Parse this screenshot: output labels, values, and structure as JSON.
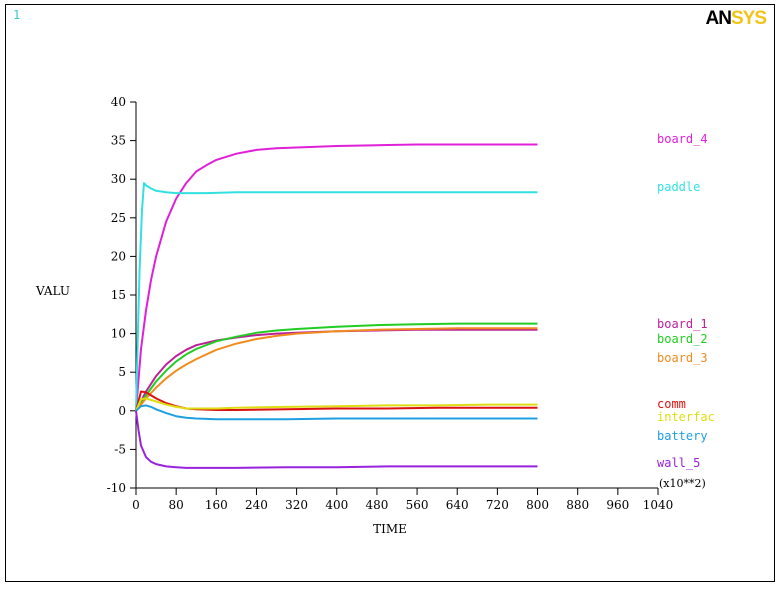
{
  "window": {
    "corner_number": "1",
    "corner_color": "#33cccc"
  },
  "logo": {
    "part1": "AN",
    "part2": "SYS",
    "color1": "#000000",
    "color2": "#f2c418"
  },
  "chart_data": {
    "type": "line",
    "title": "",
    "xlabel": "TIME",
    "ylabel": "VALU",
    "x_multiplier_label": "(x10**2)",
    "xlim": [
      0,
      1040
    ],
    "ylim": [
      -10,
      40
    ],
    "xticks": [
      0,
      80,
      160,
      240,
      320,
      400,
      480,
      560,
      640,
      720,
      800,
      880,
      960,
      1040
    ],
    "yticks": [
      -10,
      -5,
      0,
      5,
      10,
      15,
      20,
      25,
      30,
      35,
      40
    ],
    "legend_position": "right",
    "grid": false,
    "series": [
      {
        "name": "board_4",
        "color": "#e020d8",
        "x": [
          0,
          5,
          10,
          20,
          30,
          40,
          60,
          80,
          100,
          120,
          140,
          160,
          200,
          240,
          280,
          320,
          400,
          480,
          560,
          640,
          720,
          800
        ],
        "y": [
          0,
          4,
          8,
          13,
          17,
          20,
          24.5,
          27.5,
          29.5,
          31,
          31.8,
          32.5,
          33.3,
          33.8,
          34.0,
          34.1,
          34.3,
          34.4,
          34.5,
          34.5,
          34.5,
          34.5
        ]
      },
      {
        "name": "paddle",
        "color": "#33e0e0",
        "x": [
          0,
          3,
          7,
          12,
          16,
          20,
          30,
          40,
          60,
          80,
          100,
          140,
          200,
          300,
          400,
          500,
          600,
          700,
          800
        ],
        "y": [
          0,
          8,
          18,
          26,
          29.5,
          29.2,
          28.8,
          28.5,
          28.3,
          28.2,
          28.2,
          28.2,
          28.3,
          28.3,
          28.3,
          28.3,
          28.3,
          28.3,
          28.3
        ]
      },
      {
        "name": "board_1",
        "color": "#bb2299",
        "x": [
          0,
          10,
          20,
          40,
          60,
          80,
          100,
          120,
          160,
          200,
          240,
          280,
          320,
          400,
          480,
          560,
          640,
          720,
          800
        ],
        "y": [
          0,
          1.2,
          2.5,
          4.5,
          6.0,
          7.1,
          7.9,
          8.5,
          9.1,
          9.5,
          9.8,
          10.0,
          10.1,
          10.3,
          10.4,
          10.5,
          10.5,
          10.5,
          10.5
        ]
      },
      {
        "name": "board_2",
        "color": "#22cc22",
        "x": [
          0,
          10,
          20,
          40,
          60,
          80,
          100,
          120,
          160,
          200,
          240,
          280,
          320,
          400,
          480,
          560,
          640,
          720,
          800
        ],
        "y": [
          0,
          1.0,
          2.0,
          3.8,
          5.2,
          6.4,
          7.3,
          8.0,
          9.0,
          9.6,
          10.1,
          10.4,
          10.6,
          10.9,
          11.1,
          11.2,
          11.3,
          11.3,
          11.3
        ]
      },
      {
        "name": "board_3",
        "color": "#f08c1e",
        "x": [
          0,
          10,
          20,
          40,
          60,
          80,
          100,
          120,
          160,
          200,
          240,
          280,
          320,
          400,
          480,
          560,
          640,
          720,
          800
        ],
        "y": [
          0,
          0.8,
          1.6,
          3.0,
          4.2,
          5.2,
          6.0,
          6.7,
          7.9,
          8.7,
          9.3,
          9.7,
          10.0,
          10.3,
          10.5,
          10.6,
          10.7,
          10.7,
          10.7
        ]
      },
      {
        "name": "comm",
        "color": "#dd1111",
        "x": [
          0,
          10,
          20,
          30,
          40,
          60,
          80,
          100,
          120,
          160,
          200,
          300,
          400,
          500,
          600,
          700,
          800
        ],
        "y": [
          0,
          2.5,
          2.4,
          2.0,
          1.6,
          1.0,
          0.6,
          0.3,
          0.2,
          0.1,
          0.1,
          0.2,
          0.3,
          0.3,
          0.4,
          0.4,
          0.4
        ]
      },
      {
        "name": "interfac",
        "color": "#dddd11",
        "x": [
          0,
          10,
          20,
          30,
          40,
          60,
          80,
          100,
          120,
          160,
          200,
          300,
          400,
          500,
          600,
          700,
          800
        ],
        "y": [
          0,
          1.5,
          1.6,
          1.4,
          1.2,
          0.8,
          0.5,
          0.3,
          0.3,
          0.3,
          0.4,
          0.5,
          0.6,
          0.7,
          0.7,
          0.8,
          0.8
        ]
      },
      {
        "name": "battery",
        "color": "#1f9fe0",
        "x": [
          0,
          10,
          20,
          30,
          40,
          60,
          80,
          100,
          120,
          160,
          200,
          300,
          400,
          500,
          600,
          700,
          800
        ],
        "y": [
          0,
          0.6,
          0.7,
          0.5,
          0.2,
          -0.3,
          -0.7,
          -0.9,
          -1.0,
          -1.1,
          -1.1,
          -1.1,
          -1.0,
          -1.0,
          -1.0,
          -1.0,
          -1.0
        ]
      },
      {
        "name": "wall_5",
        "color": "#9922dd",
        "x": [
          0,
          5,
          10,
          20,
          30,
          40,
          60,
          80,
          100,
          120,
          160,
          200,
          300,
          400,
          500,
          600,
          700,
          800
        ],
        "y": [
          0,
          -2.5,
          -4.5,
          -6.0,
          -6.6,
          -6.9,
          -7.2,
          -7.3,
          -7.4,
          -7.4,
          -7.4,
          -7.4,
          -7.3,
          -7.3,
          -7.2,
          -7.2,
          -7.2,
          -7.2
        ]
      }
    ]
  }
}
